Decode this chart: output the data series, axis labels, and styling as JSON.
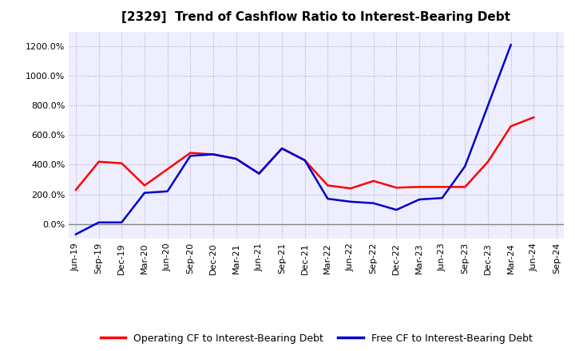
{
  "title": "[2329]  Trend of Cashflow Ratio to Interest-Bearing Debt",
  "x_labels": [
    "Jun-19",
    "Sep-19",
    "Dec-19",
    "Mar-20",
    "Jun-20",
    "Sep-20",
    "Dec-20",
    "Mar-21",
    "Jun-21",
    "Sep-21",
    "Dec-21",
    "Mar-22",
    "Jun-22",
    "Sep-22",
    "Dec-22",
    "Mar-23",
    "Jun-23",
    "Sep-23",
    "Dec-23",
    "Mar-24",
    "Jun-24",
    "Sep-24"
  ],
  "operating_cf": [
    230,
    420,
    410,
    260,
    370,
    480,
    470,
    440,
    340,
    510,
    430,
    260,
    240,
    290,
    245,
    250,
    250,
    250,
    420,
    660,
    720,
    null
  ],
  "free_cf": [
    -70,
    10,
    10,
    210,
    220,
    460,
    470,
    440,
    340,
    510,
    430,
    170,
    150,
    140,
    95,
    165,
    175,
    390,
    800,
    1210,
    null,
    null
  ],
  "operating_color": "#FF0000",
  "free_color": "#0000CC",
  "background_color": "#FFFFFF",
  "plot_bg_color": "#EEEEFF",
  "grid_color": "#AAAACC",
  "ylim_pct": [
    -100,
    1300
  ],
  "yticks_pct": [
    0,
    200,
    400,
    600,
    800,
    1000,
    1200
  ],
  "legend_operating": "Operating CF to Interest-Bearing Debt",
  "legend_free": "Free CF to Interest-Bearing Debt",
  "title_fontsize": 11,
  "tick_fontsize": 8,
  "legend_fontsize": 9
}
